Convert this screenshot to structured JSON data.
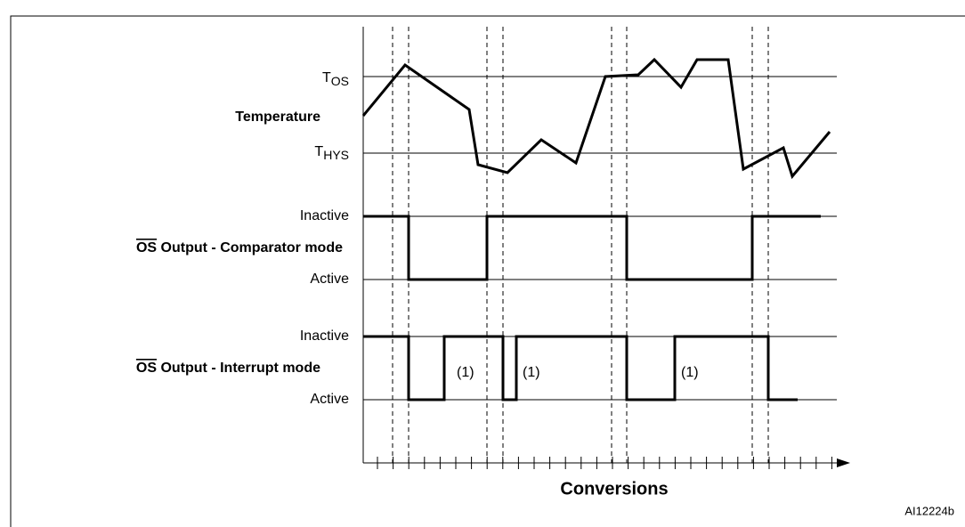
{
  "levels": {
    "tos": {
      "main": "T",
      "sub": "OS"
    },
    "temperature": "Temperature",
    "thys": {
      "main": "T",
      "sub": "HYS"
    },
    "comparator": {
      "inactive": "Inactive",
      "title_bar": "OS",
      "title_rest": " Output - Comparator mode",
      "active": "Active"
    },
    "interrupt": {
      "inactive": "Inactive",
      "title_bar": "OS",
      "title_rest": " Output - Interrupt mode",
      "active": "Active"
    }
  },
  "notes": [
    "(1)",
    "(1)",
    "(1)"
  ],
  "x_axis": "Conversions",
  "figure_id": "AI12224b"
}
